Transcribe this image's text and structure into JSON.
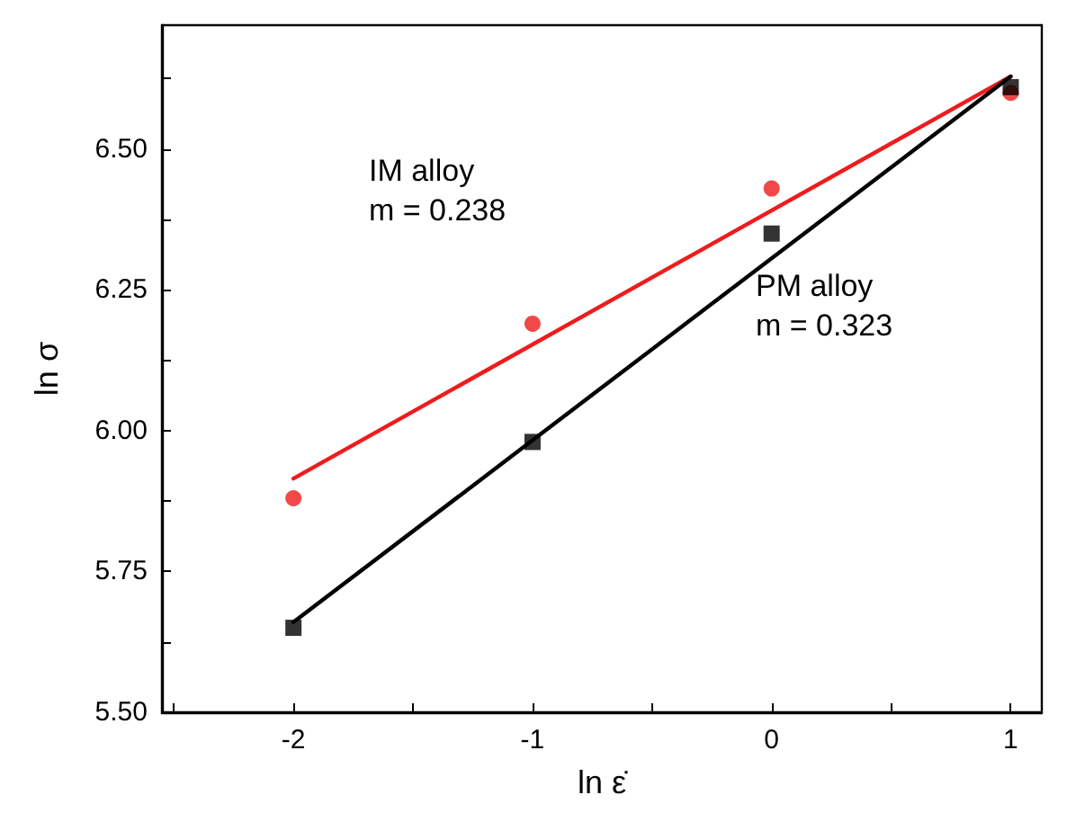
{
  "chart_data": {
    "type": "scatter",
    "xlabel": "ln ε̇",
    "ylabel": "ln σ",
    "xlim": [
      -2.55,
      1.13
    ],
    "ylim": [
      5.5,
      6.72
    ],
    "xticks": [
      {
        "value": -2.5,
        "label": null
      },
      -2,
      {
        "value": -1.5,
        "label": null
      },
      -1,
      {
        "value": -0.5,
        "label": null
      },
      0,
      {
        "value": 0.5,
        "label": null
      },
      1
    ],
    "yticks": [
      {
        "value": 5.5,
        "label": "5.50"
      },
      {
        "value": 5.625,
        "label": null
      },
      {
        "value": 5.75,
        "label": "5.75"
      },
      {
        "value": 5.875,
        "label": null
      },
      {
        "value": 6,
        "label": "6.00"
      },
      {
        "value": 6.125,
        "label": null
      },
      {
        "value": 6.25,
        "label": "6.25"
      },
      {
        "value": 6.375,
        "label": null
      },
      {
        "value": 6.5,
        "label": "6.50"
      },
      {
        "value": 6.625,
        "label": null
      }
    ],
    "grid": false,
    "series": [
      {
        "color": "#ee1c1c",
        "marker": "circle",
        "x": [
          -2,
          -1,
          0,
          1
        ],
        "values": [
          5.88,
          6.19,
          6.43,
          6.6
        ]
      },
      {
        "color": "#000000",
        "marker": "square",
        "x": [
          -2,
          -1,
          0,
          1
        ],
        "values": [
          5.65,
          5.98,
          6.35,
          6.61
        ]
      },
      {
        "type": "line",
        "color": "#ee1c1c",
        "marker": "none",
        "line_style": "solid",
        "x": [
          -2,
          1
        ],
        "values": [
          5.915,
          6.629
        ]
      },
      {
        "type": "line",
        "color": "#000000",
        "marker": "none",
        "line_style": "solid",
        "x": [
          -2,
          1
        ],
        "values": [
          5.66,
          6.629
        ]
      }
    ],
    "annotations": [
      "IM alloy\nm = 0.238",
      "PM alloy\nm = 0.323"
    ]
  }
}
